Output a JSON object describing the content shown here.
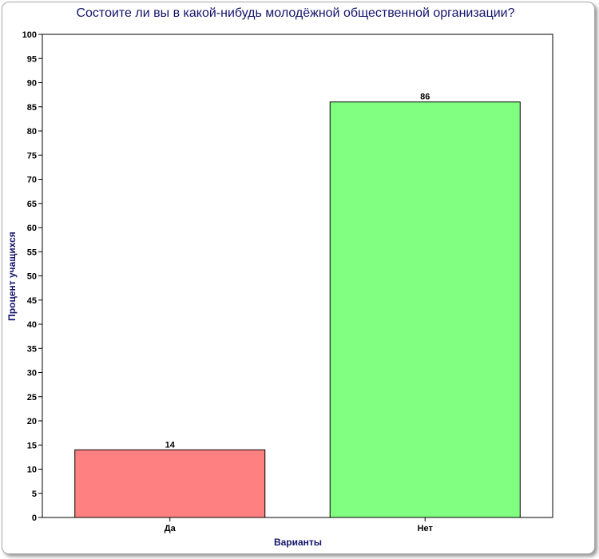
{
  "chart_data": {
    "type": "bar",
    "title": "Состоите ли вы в какой-нибудь молодёжной общественной организации?",
    "xlabel": "Варианты",
    "ylabel": "Процент учащихся",
    "categories": [
      "Да",
      "Нет"
    ],
    "values": [
      14,
      86
    ],
    "colors": [
      "#ff8080",
      "#80ff80"
    ],
    "ylim": [
      0,
      100
    ],
    "ytick_step": 5,
    "grid": false,
    "legend": "none",
    "show_value_labels": true
  }
}
